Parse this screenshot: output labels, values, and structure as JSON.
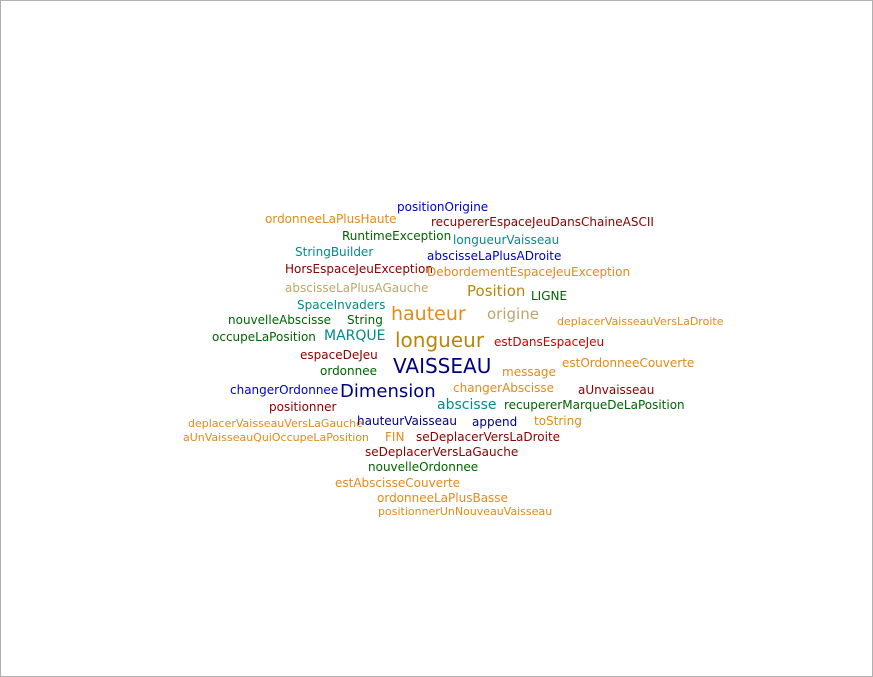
{
  "colors": {
    "orange": "#e38a17",
    "gold": "#b8860b",
    "khaki": "#bba76b",
    "darkred": "#8b0000",
    "red": "#cc0000",
    "blue": "#0000cc",
    "navy": "#000080",
    "teal": "#008b8b",
    "green": "#006400"
  },
  "words": [
    {
      "text": "positionOrigine",
      "color": "#0000cc",
      "weight": 1
    },
    {
      "text": "ordonneeLaPlusHaute",
      "color": "#e38a17",
      "weight": 1
    },
    {
      "text": "recupererEspaceJeuDansChaineASCII",
      "color": "#8b0000",
      "weight": 1
    },
    {
      "text": "RuntimeException",
      "color": "#006400",
      "weight": 1
    },
    {
      "text": "longueurVaisseau",
      "color": "#008b8b",
      "weight": 1
    },
    {
      "text": "StringBuilder",
      "color": "#008b8b",
      "weight": 1
    },
    {
      "text": "abscisseLaPlusADroite",
      "color": "#0000cc",
      "weight": 1
    },
    {
      "text": "HorsEspaceJeuException",
      "color": "#8b0000",
      "weight": 1
    },
    {
      "text": "DebordementEspaceJeuException",
      "color": "#e38a17",
      "weight": 1
    },
    {
      "text": "abscisseLaPlusAGauche",
      "color": "#bba76b",
      "weight": 1
    },
    {
      "text": "Position",
      "color": "#b8860b",
      "weight": 2
    },
    {
      "text": "LIGNE",
      "color": "#006400",
      "weight": 1
    },
    {
      "text": "SpaceInvaders",
      "color": "#008b8b",
      "weight": 1
    },
    {
      "text": "hauteur",
      "color": "#e38a17",
      "weight": 3
    },
    {
      "text": "origine",
      "color": "#bba76b",
      "weight": 2
    },
    {
      "text": "nouvelleAbscisse",
      "color": "#006400",
      "weight": 1
    },
    {
      "text": "String",
      "color": "#006400",
      "weight": 1
    },
    {
      "text": "deplacerVaisseauVersLaDroite",
      "color": "#e38a17",
      "weight": 1
    },
    {
      "text": "occupeLaPosition",
      "color": "#006400",
      "weight": 1
    },
    {
      "text": "MARQUE",
      "color": "#008b8b",
      "weight": 2
    },
    {
      "text": "longueur",
      "color": "#b8860b",
      "weight": 3
    },
    {
      "text": "estDansEspaceJeu",
      "color": "#cc0000",
      "weight": 1
    },
    {
      "text": "espaceDeJeu",
      "color": "#8b0000",
      "weight": 1
    },
    {
      "text": "VAISSEAU",
      "color": "#000080",
      "weight": 4
    },
    {
      "text": "estOrdonneeCouverte",
      "color": "#e38a17",
      "weight": 1
    },
    {
      "text": "ordonnee",
      "color": "#006400",
      "weight": 1
    },
    {
      "text": "message",
      "color": "#e38a17",
      "weight": 1
    },
    {
      "text": "changerOrdonnee",
      "color": "#0000cc",
      "weight": 1
    },
    {
      "text": "Dimension",
      "color": "#000080",
      "weight": 3
    },
    {
      "text": "changerAbscisse",
      "color": "#e38a17",
      "weight": 1
    },
    {
      "text": "aUnvaisseau",
      "color": "#8b0000",
      "weight": 1
    },
    {
      "text": "positionner",
      "color": "#8b0000",
      "weight": 1
    },
    {
      "text": "abscisse",
      "color": "#008b8b",
      "weight": 2
    },
    {
      "text": "recupererMarqueDeLaPosition",
      "color": "#006400",
      "weight": 1
    },
    {
      "text": "deplacerVaisseauVersLaGauche",
      "color": "#e38a17",
      "weight": 1
    },
    {
      "text": "hauteurVaisseau",
      "color": "#000080",
      "weight": 1
    },
    {
      "text": "append",
      "color": "#000080",
      "weight": 1
    },
    {
      "text": "toString",
      "color": "#e38a17",
      "weight": 1
    },
    {
      "text": "aUnVaisseauQuiOccupeLaPosition",
      "color": "#e38a17",
      "weight": 1
    },
    {
      "text": "FIN",
      "color": "#e38a17",
      "weight": 1
    },
    {
      "text": "seDeplacerVersLaDroite",
      "color": "#8b0000",
      "weight": 1
    },
    {
      "text": "seDeplacerVersLaGauche",
      "color": "#8b0000",
      "weight": 1
    },
    {
      "text": "nouvelleOrdonnee",
      "color": "#006400",
      "weight": 1
    },
    {
      "text": "estAbscisseCouverte",
      "color": "#e38a17",
      "weight": 1
    },
    {
      "text": "ordonneeLaPlusBasse",
      "color": "#e38a17",
      "weight": 1
    },
    {
      "text": "positionnerUnNouveauVaisseau",
      "color": "#e38a17",
      "weight": 1
    }
  ]
}
